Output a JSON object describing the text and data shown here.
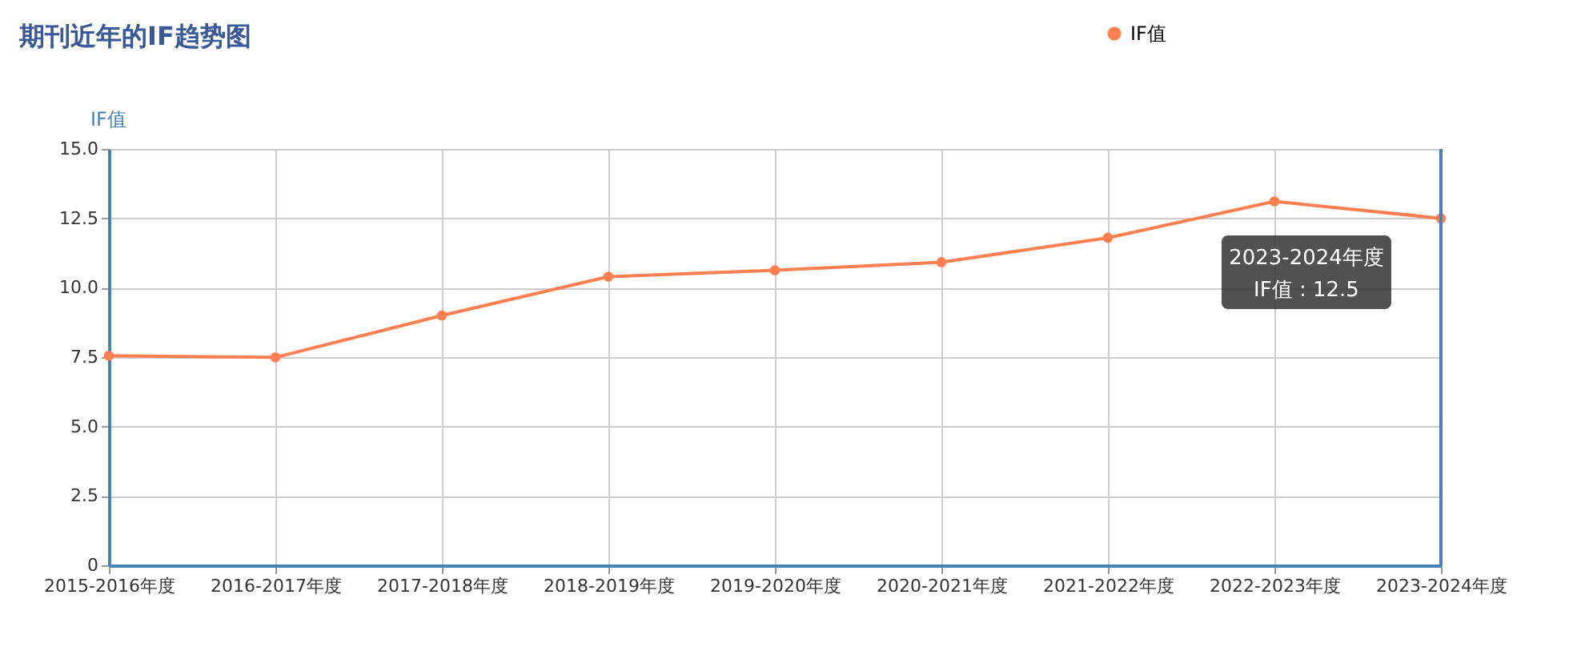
{
  "chart_data": {
    "type": "line",
    "title": "期刊近年的IF趋势图",
    "ylabel": "IF值",
    "categories": [
      "2015-2016年度",
      "2016-2017年度",
      "2017-2018年度",
      "2018-2019年度",
      "2019-2020年度",
      "2020-2021年度",
      "2021-2022年度",
      "2022-2023年度",
      "2023-2024年度"
    ],
    "series": [
      {
        "name": "IF值",
        "color": "#ff7f50",
        "values": [
          7.55,
          7.49,
          9.0,
          10.4,
          10.63,
          10.92,
          11.8,
          13.11,
          12.5
        ]
      }
    ],
    "ylim": [
      0,
      15
    ],
    "yticks": [
      0,
      {
        "value": 2.5,
        "label": "2.5"
      },
      {
        "value": 5,
        "label": "5.0"
      },
      {
        "value": 7.5,
        "label": "7.5"
      },
      {
        "value": 10,
        "label": "10.0"
      },
      {
        "value": 12.5,
        "label": "12.5"
      },
      {
        "value": 15,
        "label": "15.0"
      }
    ],
    "grid": true,
    "legend": "top right",
    "marker": "circle",
    "line_style": "solid",
    "annotations": [
      "2023-2024年度\nIF值 : 12.5"
    ]
  }
}
